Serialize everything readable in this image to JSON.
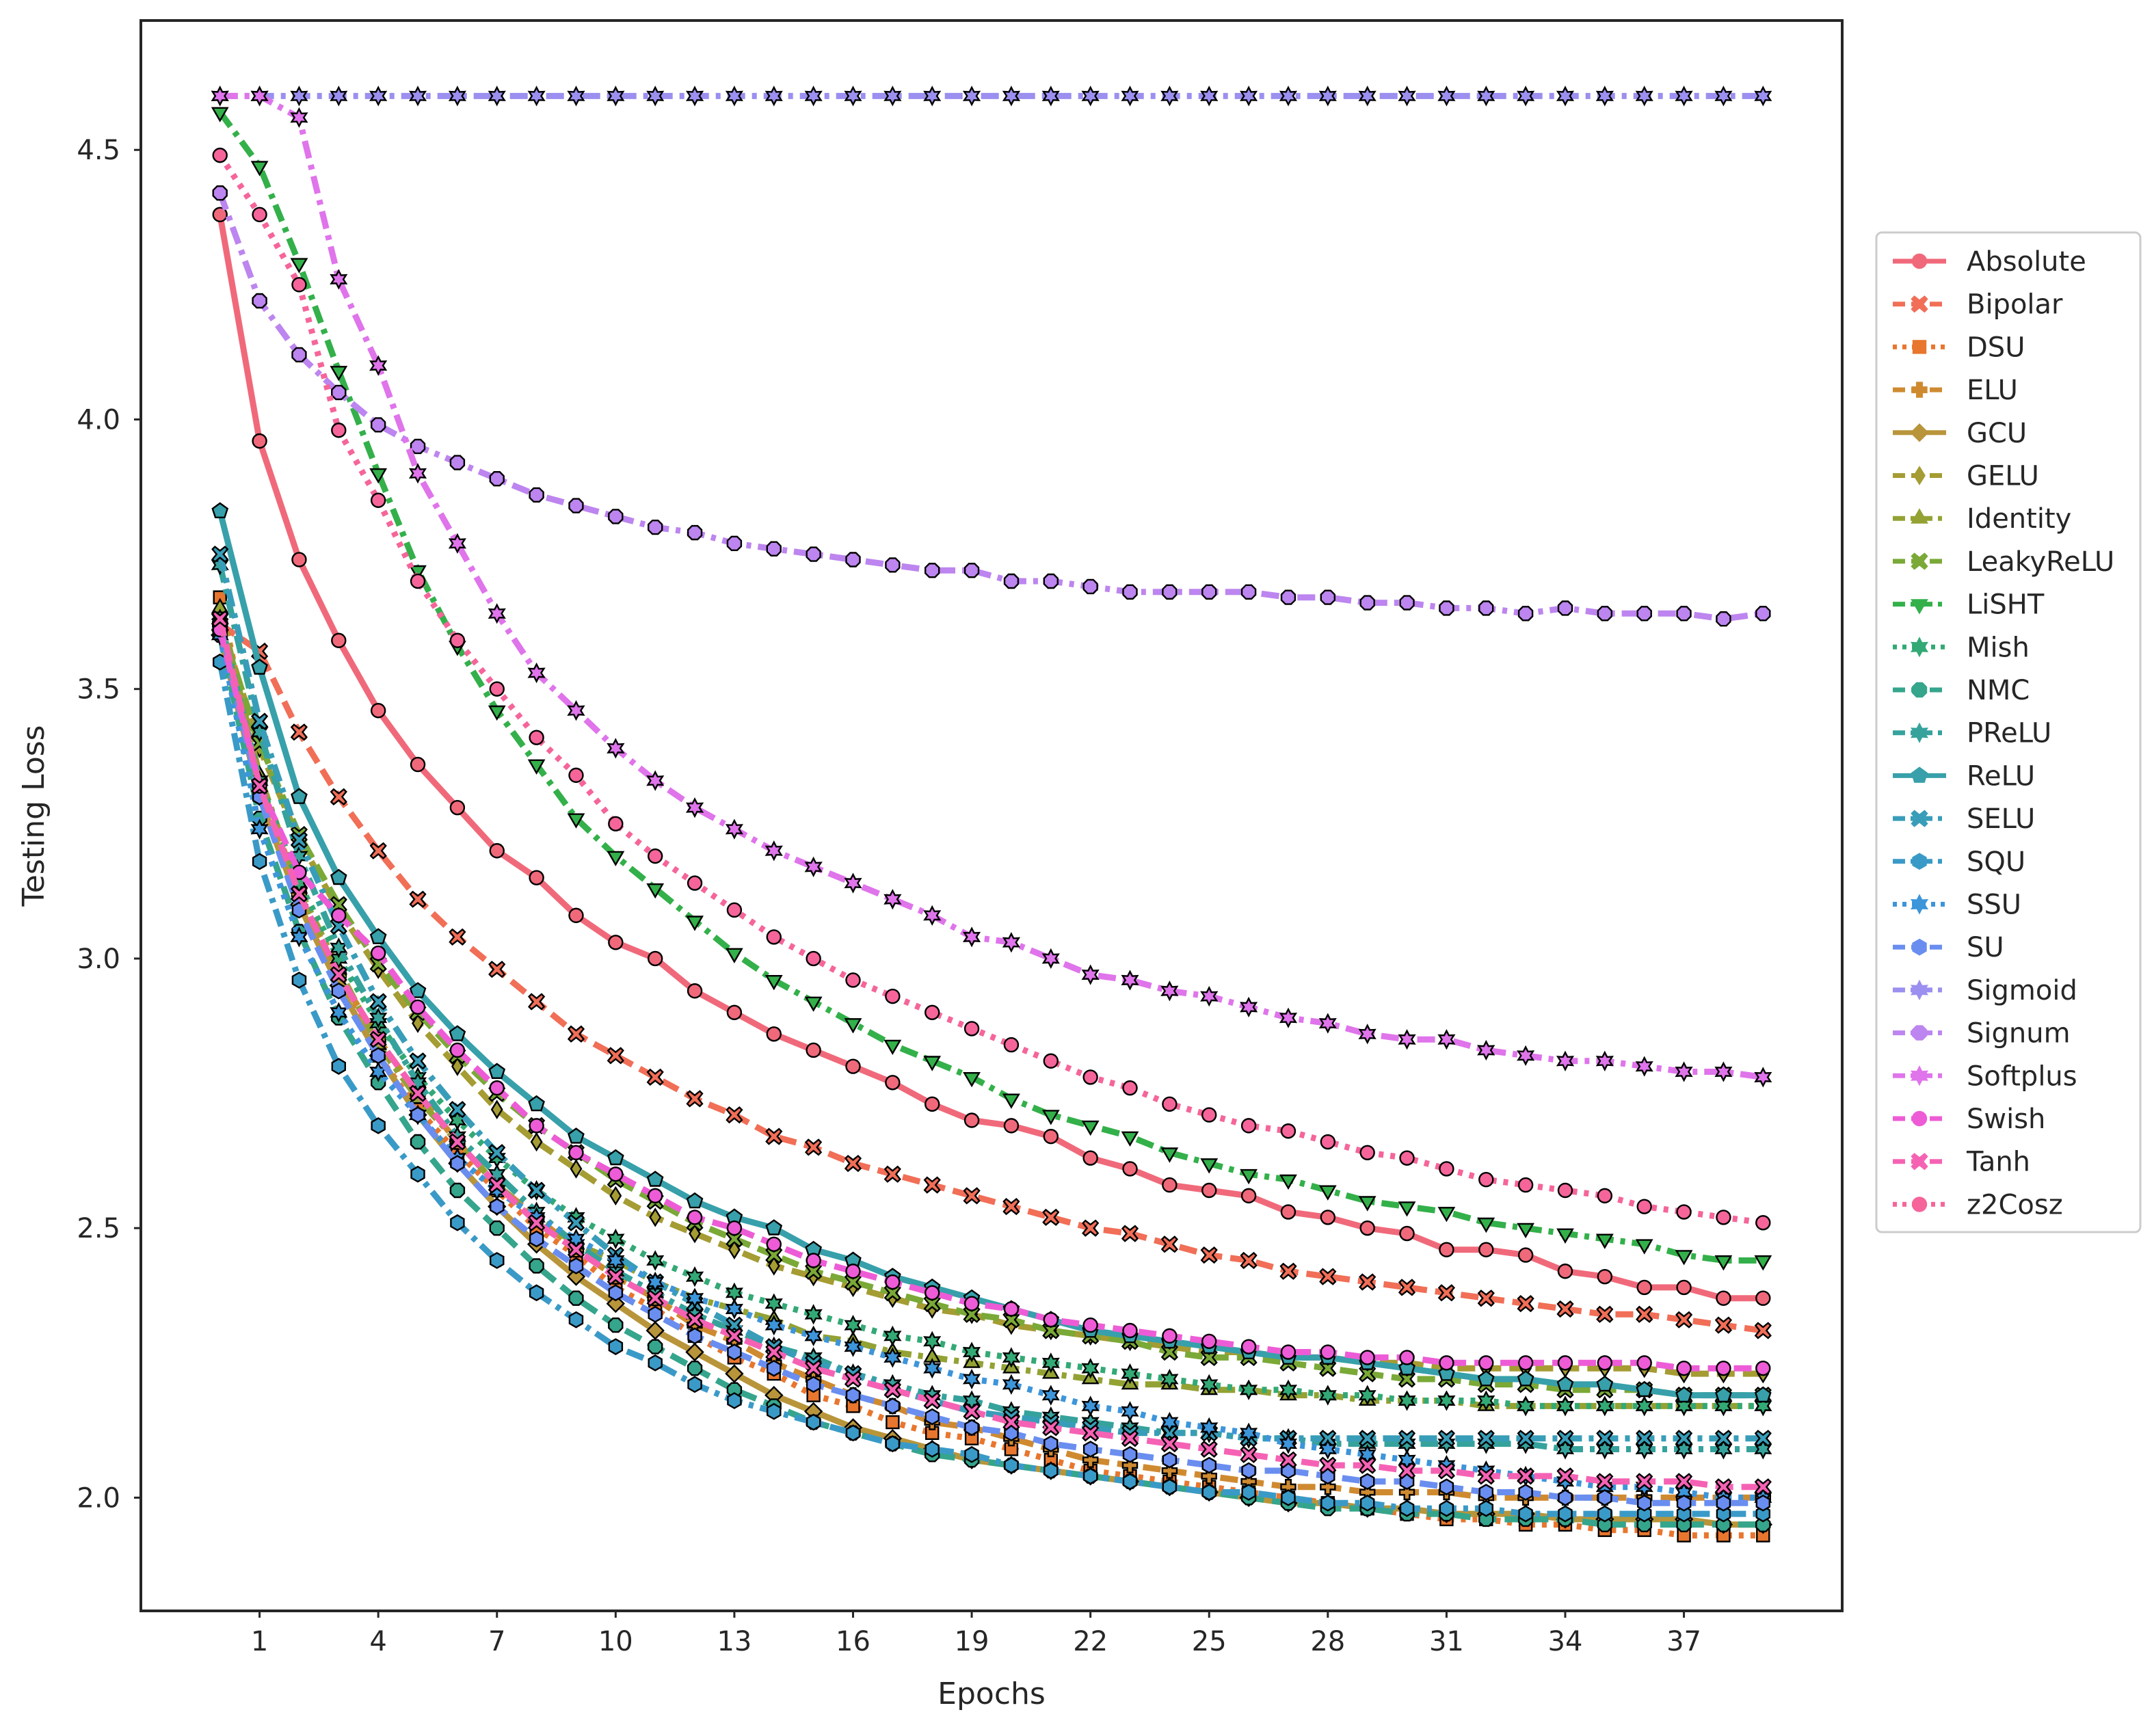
{
  "chart_data": {
    "type": "line",
    "xlabel": "Epochs",
    "ylabel": "Testing Loss",
    "xlim": [
      -2,
      41
    ],
    "ylim": [
      1.79,
      4.74
    ],
    "xticks": [
      1,
      4,
      7,
      10,
      13,
      16,
      19,
      22,
      25,
      28,
      31,
      34,
      37
    ],
    "yticks": [
      2.0,
      2.5,
      3.0,
      3.5,
      4.0,
      4.5
    ],
    "x": [
      0,
      1,
      2,
      3,
      4,
      5,
      6,
      7,
      8,
      9,
      10,
      11,
      12,
      13,
      14,
      15,
      16,
      17,
      18,
      19,
      20,
      21,
      22,
      23,
      24,
      25,
      26,
      27,
      28,
      29,
      30,
      31,
      32,
      33,
      34,
      35,
      36,
      37,
      38,
      39
    ],
    "grid": false,
    "legend_position": "right-outside",
    "series": [
      {
        "name": "Absolute",
        "color": "#f0697a",
        "dash": "solid",
        "marker": "circle",
        "values": [
          4.38,
          3.96,
          3.74,
          3.59,
          3.46,
          3.36,
          3.28,
          3.2,
          3.15,
          3.08,
          3.03,
          3.0,
          2.94,
          2.9,
          2.86,
          2.83,
          2.8,
          2.77,
          2.73,
          2.7,
          2.69,
          2.67,
          2.63,
          2.61,
          2.58,
          2.57,
          2.56,
          2.53,
          2.52,
          2.5,
          2.49,
          2.46,
          2.46,
          2.45,
          2.42,
          2.41,
          2.39,
          2.39,
          2.37,
          2.37
        ]
      },
      {
        "name": "Bipolar",
        "color": "#f16e57",
        "dash": "dashed",
        "marker": "x",
        "values": [
          3.62,
          3.57,
          3.42,
          3.3,
          3.2,
          3.11,
          3.04,
          2.98,
          2.92,
          2.86,
          2.82,
          2.78,
          2.74,
          2.71,
          2.67,
          2.65,
          2.62,
          2.6,
          2.58,
          2.56,
          2.54,
          2.52,
          2.5,
          2.49,
          2.47,
          2.45,
          2.44,
          2.42,
          2.41,
          2.4,
          2.39,
          2.38,
          2.37,
          2.36,
          2.35,
          2.34,
          2.34,
          2.33,
          2.32,
          2.31
        ]
      },
      {
        "name": "DSU",
        "color": "#e8762e",
        "dash": "dotted",
        "marker": "square",
        "values": [
          3.67,
          3.32,
          3.12,
          2.96,
          2.82,
          2.72,
          2.64,
          2.57,
          2.5,
          2.45,
          2.39,
          2.35,
          2.3,
          2.26,
          2.23,
          2.19,
          2.17,
          2.14,
          2.12,
          2.11,
          2.09,
          2.07,
          2.05,
          2.04,
          2.03,
          2.02,
          2.01,
          2.0,
          1.99,
          1.98,
          1.97,
          1.96,
          1.96,
          1.95,
          1.95,
          1.94,
          1.94,
          1.93,
          1.93,
          1.93
        ]
      },
      {
        "name": "ELU",
        "color": "#cf8a30",
        "dash": "dashed",
        "marker": "plus",
        "values": [
          3.62,
          3.33,
          3.12,
          2.97,
          2.85,
          2.75,
          2.66,
          2.58,
          2.52,
          2.46,
          2.41,
          2.37,
          2.32,
          2.29,
          2.25,
          2.22,
          2.19,
          2.17,
          2.14,
          2.13,
          2.11,
          2.09,
          2.07,
          2.06,
          2.05,
          2.04,
          2.03,
          2.02,
          2.02,
          2.01,
          2.01,
          2.01,
          2.0,
          2.0,
          2.0,
          2.0,
          2.0,
          2.0,
          2.0,
          2.0
        ]
      },
      {
        "name": "GCU",
        "color": "#b8953a",
        "dash": "solid",
        "marker": "diamond",
        "values": [
          3.6,
          3.3,
          3.1,
          2.95,
          2.82,
          2.71,
          2.62,
          2.54,
          2.47,
          2.41,
          2.36,
          2.31,
          2.27,
          2.23,
          2.19,
          2.16,
          2.13,
          2.11,
          2.09,
          2.07,
          2.06,
          2.05,
          2.04,
          2.03,
          2.02,
          2.01,
          2.0,
          1.99,
          1.99,
          1.98,
          1.98,
          1.97,
          1.97,
          1.97,
          1.96,
          1.96,
          1.96,
          1.96,
          1.95,
          1.95
        ]
      },
      {
        "name": "GELU",
        "color": "#a59c33",
        "dash": "dashed",
        "marker": "thin_diamond",
        "values": [
          3.63,
          3.39,
          3.22,
          3.09,
          2.98,
          2.88,
          2.8,
          2.72,
          2.66,
          2.61,
          2.56,
          2.52,
          2.49,
          2.46,
          2.43,
          2.41,
          2.39,
          2.37,
          2.35,
          2.34,
          2.32,
          2.31,
          2.3,
          2.29,
          2.28,
          2.27,
          2.27,
          2.26,
          2.26,
          2.25,
          2.25,
          2.24,
          2.24,
          2.24,
          2.24,
          2.24,
          2.24,
          2.23,
          2.23,
          2.23
        ]
      },
      {
        "name": "Identity",
        "color": "#93a233",
        "dash": "dashdot",
        "marker": "triangle-up",
        "values": [
          3.65,
          3.34,
          3.13,
          2.98,
          2.84,
          2.74,
          2.66,
          2.58,
          2.52,
          2.47,
          2.44,
          2.4,
          2.37,
          2.35,
          2.33,
          2.3,
          2.29,
          2.27,
          2.26,
          2.25,
          2.24,
          2.23,
          2.22,
          2.21,
          2.21,
          2.2,
          2.2,
          2.19,
          2.19,
          2.18,
          2.18,
          2.18,
          2.17,
          2.17,
          2.17,
          2.17,
          2.17,
          2.17,
          2.17,
          2.17
        ]
      },
      {
        "name": "LeakyReLU",
        "color": "#7aa937",
        "dash": "dashed",
        "marker": "x",
        "values": [
          3.62,
          3.4,
          3.23,
          3.1,
          2.99,
          2.9,
          2.82,
          2.75,
          2.69,
          2.64,
          2.59,
          2.55,
          2.51,
          2.48,
          2.45,
          2.42,
          2.4,
          2.38,
          2.36,
          2.34,
          2.33,
          2.31,
          2.3,
          2.29,
          2.27,
          2.26,
          2.26,
          2.25,
          2.24,
          2.23,
          2.22,
          2.22,
          2.21,
          2.21,
          2.2,
          2.2,
          2.2,
          2.19,
          2.19,
          2.19
        ]
      },
      {
        "name": "LiSHT",
        "color": "#33b04a",
        "dash": "dashdot",
        "marker": "triangle-down",
        "values": [
          4.57,
          4.47,
          4.29,
          4.09,
          3.9,
          3.72,
          3.58,
          3.46,
          3.36,
          3.26,
          3.19,
          3.13,
          3.07,
          3.01,
          2.96,
          2.92,
          2.88,
          2.84,
          2.81,
          2.78,
          2.74,
          2.71,
          2.69,
          2.67,
          2.64,
          2.62,
          2.6,
          2.59,
          2.57,
          2.55,
          2.54,
          2.53,
          2.51,
          2.5,
          2.49,
          2.48,
          2.47,
          2.45,
          2.44,
          2.44
        ]
      },
      {
        "name": "Mish",
        "color": "#33a975",
        "dash": "dotted",
        "marker": "star",
        "values": [
          3.63,
          3.33,
          3.14,
          3.0,
          2.88,
          2.78,
          2.7,
          2.63,
          2.57,
          2.52,
          2.48,
          2.44,
          2.41,
          2.38,
          2.36,
          2.34,
          2.32,
          2.3,
          2.29,
          2.27,
          2.26,
          2.25,
          2.24,
          2.23,
          2.22,
          2.21,
          2.2,
          2.2,
          2.19,
          2.19,
          2.18,
          2.18,
          2.18,
          2.17,
          2.17,
          2.17,
          2.17,
          2.17,
          2.17,
          2.17
        ]
      },
      {
        "name": "NMC",
        "color": "#35a58c",
        "dash": "dashed",
        "marker": "octagon",
        "values": [
          3.6,
          3.26,
          3.05,
          2.89,
          2.77,
          2.66,
          2.57,
          2.5,
          2.43,
          2.37,
          2.32,
          2.28,
          2.24,
          2.2,
          2.17,
          2.14,
          2.12,
          2.1,
          2.08,
          2.07,
          2.06,
          2.05,
          2.04,
          2.03,
          2.02,
          2.01,
          2.0,
          1.99,
          1.98,
          1.98,
          1.97,
          1.97,
          1.96,
          1.96,
          1.96,
          1.95,
          1.95,
          1.95,
          1.95,
          1.95
        ]
      },
      {
        "name": "PReLU",
        "color": "#36a29c",
        "dash": "dashdot",
        "marker": "star",
        "values": [
          3.73,
          3.42,
          3.19,
          3.02,
          2.89,
          2.77,
          2.67,
          2.6,
          2.53,
          2.47,
          2.42,
          2.38,
          2.34,
          2.31,
          2.28,
          2.26,
          2.23,
          2.21,
          2.19,
          2.18,
          2.16,
          2.15,
          2.14,
          2.13,
          2.12,
          2.12,
          2.11,
          2.11,
          2.1,
          2.1,
          2.1,
          2.1,
          2.1,
          2.1,
          2.09,
          2.09,
          2.09,
          2.09,
          2.09,
          2.09
        ]
      },
      {
        "name": "ReLU",
        "color": "#37a0aa",
        "dash": "solid",
        "marker": "pentagon",
        "values": [
          3.83,
          3.54,
          3.3,
          3.15,
          3.04,
          2.94,
          2.86,
          2.79,
          2.73,
          2.67,
          2.63,
          2.59,
          2.55,
          2.52,
          2.5,
          2.46,
          2.44,
          2.41,
          2.39,
          2.37,
          2.35,
          2.33,
          2.31,
          2.3,
          2.29,
          2.28,
          2.27,
          2.26,
          2.26,
          2.25,
          2.24,
          2.23,
          2.22,
          2.22,
          2.21,
          2.21,
          2.2,
          2.19,
          2.19,
          2.19
        ]
      },
      {
        "name": "SELU",
        "color": "#389db8",
        "dash": "dashdot",
        "marker": "x",
        "values": [
          3.75,
          3.44,
          3.22,
          3.06,
          2.92,
          2.81,
          2.72,
          2.64,
          2.57,
          2.51,
          2.45,
          2.4,
          2.36,
          2.32,
          2.28,
          2.25,
          2.23,
          2.2,
          2.18,
          2.16,
          2.15,
          2.14,
          2.13,
          2.12,
          2.12,
          2.12,
          2.11,
          2.11,
          2.11,
          2.11,
          2.11,
          2.11,
          2.11,
          2.11,
          2.11,
          2.11,
          2.11,
          2.11,
          2.11,
          2.11
        ]
      },
      {
        "name": "SQU",
        "color": "#3a9ac7",
        "dash": "dashdot",
        "marker": "hexagon",
        "values": [
          3.55,
          3.18,
          2.96,
          2.8,
          2.69,
          2.6,
          2.51,
          2.44,
          2.38,
          2.33,
          2.28,
          2.25,
          2.21,
          2.18,
          2.16,
          2.14,
          2.12,
          2.1,
          2.09,
          2.08,
          2.06,
          2.05,
          2.04,
          2.03,
          2.02,
          2.01,
          2.01,
          2.0,
          1.99,
          1.99,
          1.98,
          1.98,
          1.98,
          1.97,
          1.97,
          1.97,
          1.97,
          1.97,
          1.97,
          1.97
        ]
      },
      {
        "name": "SSU",
        "color": "#3d95da",
        "dash": "dotted",
        "marker": "star",
        "values": [
          3.6,
          3.24,
          3.04,
          2.9,
          2.79,
          2.71,
          2.63,
          2.57,
          2.52,
          2.48,
          2.44,
          2.4,
          2.37,
          2.35,
          2.32,
          2.3,
          2.28,
          2.26,
          2.24,
          2.22,
          2.21,
          2.19,
          2.17,
          2.16,
          2.14,
          2.13,
          2.12,
          2.1,
          2.09,
          2.08,
          2.07,
          2.06,
          2.05,
          2.04,
          2.03,
          2.02,
          2.02,
          2.01,
          2.0,
          2.0
        ]
      },
      {
        "name": "SU",
        "color": "#6a8ef0",
        "dash": "dashed",
        "marker": "hexagon",
        "values": [
          3.62,
          3.3,
          3.09,
          2.94,
          2.82,
          2.71,
          2.62,
          2.54,
          2.48,
          2.43,
          2.38,
          2.34,
          2.3,
          2.27,
          2.24,
          2.21,
          2.19,
          2.17,
          2.15,
          2.13,
          2.12,
          2.1,
          2.09,
          2.08,
          2.07,
          2.06,
          2.05,
          2.05,
          2.04,
          2.03,
          2.03,
          2.02,
          2.01,
          2.01,
          2.0,
          2.0,
          1.99,
          1.99,
          1.99,
          1.99
        ]
      },
      {
        "name": "Sigmoid",
        "color": "#9b8ff0",
        "dash": "dashdot",
        "marker": "star",
        "values": [
          4.6,
          4.6,
          4.6,
          4.6,
          4.6,
          4.6,
          4.6,
          4.6,
          4.6,
          4.6,
          4.6,
          4.6,
          4.6,
          4.6,
          4.6,
          4.6,
          4.6,
          4.6,
          4.6,
          4.6,
          4.6,
          4.6,
          4.6,
          4.6,
          4.6,
          4.6,
          4.6,
          4.6,
          4.6,
          4.6,
          4.6,
          4.6,
          4.6,
          4.6,
          4.6,
          4.6,
          4.6,
          4.6,
          4.6,
          4.6
        ]
      },
      {
        "name": "Signum",
        "color": "#bd85ef",
        "dash": "dashdot",
        "marker": "octagon",
        "values": [
          4.42,
          4.22,
          4.12,
          4.05,
          3.99,
          3.95,
          3.92,
          3.89,
          3.86,
          3.84,
          3.82,
          3.8,
          3.79,
          3.77,
          3.76,
          3.75,
          3.74,
          3.73,
          3.72,
          3.72,
          3.7,
          3.7,
          3.69,
          3.68,
          3.68,
          3.68,
          3.68,
          3.67,
          3.67,
          3.66,
          3.66,
          3.65,
          3.65,
          3.64,
          3.65,
          3.64,
          3.64,
          3.64,
          3.63,
          3.64
        ]
      },
      {
        "name": "Softplus",
        "color": "#df74eb",
        "dash": "dashdot",
        "marker": "star",
        "values": [
          4.6,
          4.6,
          4.56,
          4.26,
          4.1,
          3.9,
          3.77,
          3.64,
          3.53,
          3.46,
          3.39,
          3.33,
          3.28,
          3.24,
          3.2,
          3.17,
          3.14,
          3.11,
          3.08,
          3.04,
          3.03,
          3.0,
          2.97,
          2.96,
          2.94,
          2.93,
          2.91,
          2.89,
          2.88,
          2.86,
          2.85,
          2.85,
          2.83,
          2.82,
          2.81,
          2.81,
          2.8,
          2.79,
          2.79,
          2.78
        ]
      },
      {
        "name": "Swish",
        "color": "#ed5cd6",
        "dash": "dashed",
        "marker": "circle",
        "values": [
          3.61,
          3.32,
          3.16,
          3.08,
          3.01,
          2.91,
          2.83,
          2.76,
          2.69,
          2.64,
          2.6,
          2.56,
          2.52,
          2.5,
          2.47,
          2.44,
          2.42,
          2.4,
          2.38,
          2.36,
          2.35,
          2.33,
          2.32,
          2.31,
          2.3,
          2.29,
          2.28,
          2.27,
          2.27,
          2.26,
          2.26,
          2.25,
          2.25,
          2.25,
          2.25,
          2.25,
          2.25,
          2.24,
          2.24,
          2.24
        ]
      },
      {
        "name": "Tanh",
        "color": "#f562b4",
        "dash": "dashed",
        "marker": "x",
        "values": [
          3.63,
          3.32,
          3.12,
          2.97,
          2.85,
          2.75,
          2.66,
          2.58,
          2.51,
          2.46,
          2.41,
          2.37,
          2.33,
          2.3,
          2.27,
          2.24,
          2.22,
          2.2,
          2.18,
          2.16,
          2.14,
          2.13,
          2.12,
          2.11,
          2.1,
          2.09,
          2.08,
          2.07,
          2.06,
          2.06,
          2.05,
          2.05,
          2.04,
          2.04,
          2.04,
          2.03,
          2.03,
          2.03,
          2.02,
          2.02
        ]
      },
      {
        "name": "z2Cosz",
        "color": "#f5659a",
        "dash": "dotted",
        "marker": "circle",
        "values": [
          4.49,
          4.38,
          4.25,
          3.98,
          3.85,
          3.7,
          3.59,
          3.5,
          3.41,
          3.34,
          3.25,
          3.19,
          3.14,
          3.09,
          3.04,
          3.0,
          2.96,
          2.93,
          2.9,
          2.87,
          2.84,
          2.81,
          2.78,
          2.76,
          2.73,
          2.71,
          2.69,
          2.68,
          2.66,
          2.64,
          2.63,
          2.61,
          2.59,
          2.58,
          2.57,
          2.56,
          2.54,
          2.53,
          2.52,
          2.51
        ]
      }
    ]
  }
}
